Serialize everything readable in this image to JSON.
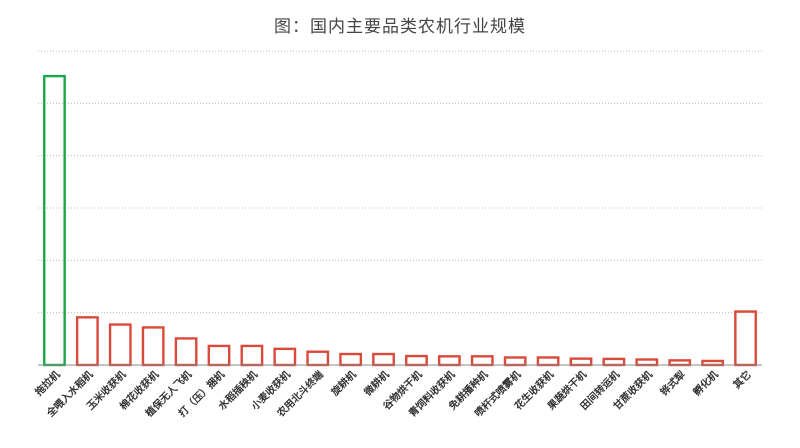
{
  "chart_data": {
    "type": "bar",
    "title": "图：国内主要品类农机行业规模",
    "xlabel": "",
    "ylabel": "",
    "ylim": [
      0,
      100
    ],
    "grid": true,
    "legend": "none",
    "categories": [
      "拖拉机",
      "全喂入水稻机",
      "玉米收获机",
      "棉花收获机",
      "植保无人飞机",
      "打（压）捆机",
      "水稻插秧机",
      "小麦收获机",
      "农用北斗终端",
      "旋耕机",
      "微耕机",
      "谷物烘干机",
      "青饲料收获机",
      "免耕播种机",
      "喷杆式喷雾机",
      "花生收获机",
      "果蔬烘干机",
      "田间转运机",
      "甘蔗收获机",
      "铧式犁",
      "孵化机",
      "其它"
    ],
    "values": [
      100,
      16.5,
      14,
      13,
      9.2,
      6.6,
      6.6,
      5.6,
      4.6,
      3.8,
      3.8,
      3.1,
      3.0,
      3.0,
      2.6,
      2.6,
      2.2,
      2.1,
      1.9,
      1.6,
      1.4,
      18.5
    ],
    "highlight_index": 0,
    "colors": {
      "highlight": "#1aa84a",
      "default": "#d94a3a",
      "grid": "#bbbbbb",
      "axis": "#888888"
    }
  }
}
